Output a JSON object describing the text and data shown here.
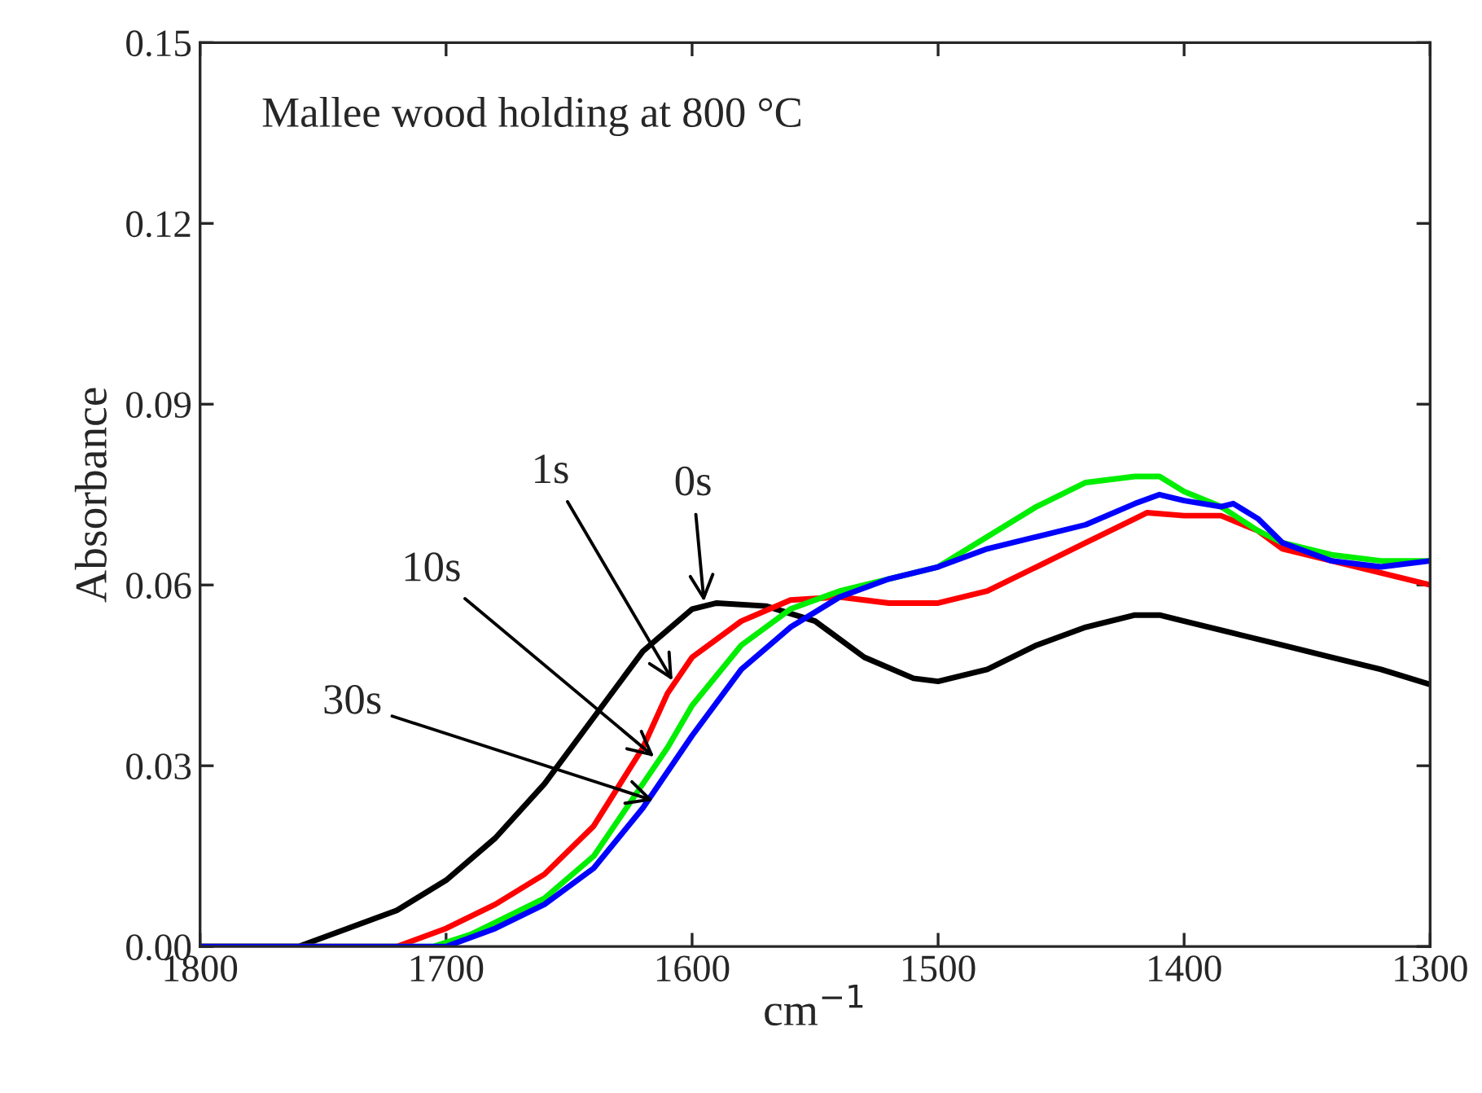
{
  "chart_data": {
    "type": "line",
    "title": "Mallee wood holding at 800 °C",
    "xlabel": "cm$^{−1}$",
    "ylabel": "Absorbance",
    "xlim": [
      1800,
      1300
    ],
    "ylim": [
      0,
      0.15
    ],
    "xticks": [
      1800,
      1700,
      1600,
      1500,
      1400,
      1300
    ],
    "yticks": [
      {
        "value": 0,
        "label": "0.00"
      },
      {
        "value": 0.03,
        "label": "0.03"
      },
      {
        "value": 0.06,
        "label": "0.06"
      },
      {
        "value": 0.09,
        "label": "0.09"
      },
      {
        "value": 0.12,
        "label": "0.12"
      },
      {
        "value": 0.15,
        "label": "0.15"
      }
    ],
    "grid": false,
    "legend": false,
    "line_style": "solid",
    "marker": "none",
    "series": [
      {
        "color": "#000000",
        "x": [
          1800,
          1760,
          1740,
          1720,
          1700,
          1680,
          1660,
          1640,
          1620,
          1600,
          1590,
          1570,
          1550,
          1530,
          1510,
          1500,
          1480,
          1460,
          1440,
          1420,
          1410,
          1400,
          1380,
          1360,
          1340,
          1320,
          1300
        ],
        "values": [
          0,
          0,
          0.003,
          0.006,
          0.011,
          0.018,
          0.027,
          0.038,
          0.049,
          0.056,
          0.057,
          0.0565,
          0.054,
          0.048,
          0.0445,
          0.044,
          0.046,
          0.05,
          0.053,
          0.055,
          0.055,
          0.054,
          0.052,
          0.05,
          0.048,
          0.046,
          0.0435
        ]
      },
      {
        "color": "#ff0000",
        "x": [
          1800,
          1720,
          1700,
          1680,
          1660,
          1640,
          1620,
          1610,
          1600,
          1580,
          1560,
          1540,
          1520,
          1500,
          1480,
          1460,
          1440,
          1420,
          1415,
          1400,
          1385,
          1370,
          1360,
          1340,
          1320,
          1300
        ],
        "values": [
          0,
          0,
          0.003,
          0.007,
          0.012,
          0.02,
          0.033,
          0.042,
          0.048,
          0.054,
          0.0575,
          0.058,
          0.057,
          0.057,
          0.059,
          0.063,
          0.067,
          0.071,
          0.072,
          0.0715,
          0.0715,
          0.069,
          0.066,
          0.064,
          0.062,
          0.06
        ]
      },
      {
        "color": "#00ee00",
        "x": [
          1800,
          1705,
          1690,
          1680,
          1660,
          1640,
          1620,
          1610,
          1600,
          1580,
          1560,
          1540,
          1520,
          1500,
          1480,
          1460,
          1440,
          1420,
          1410,
          1400,
          1385,
          1370,
          1360,
          1340,
          1320,
          1300
        ],
        "values": [
          0,
          0,
          0.002,
          0.004,
          0.008,
          0.015,
          0.027,
          0.033,
          0.04,
          0.05,
          0.056,
          0.059,
          0.061,
          0.063,
          0.068,
          0.073,
          0.077,
          0.078,
          0.078,
          0.0755,
          0.073,
          0.069,
          0.067,
          0.065,
          0.064,
          0.064
        ]
      },
      {
        "color": "#0000ff",
        "x": [
          1800,
          1700,
          1680,
          1660,
          1640,
          1620,
          1600,
          1580,
          1560,
          1540,
          1520,
          1500,
          1480,
          1460,
          1440,
          1420,
          1410,
          1400,
          1385,
          1380,
          1370,
          1360,
          1340,
          1320,
          1300
        ],
        "values": [
          0,
          0,
          0.003,
          0.007,
          0.013,
          0.023,
          0.035,
          0.046,
          0.053,
          0.058,
          0.061,
          0.063,
          0.066,
          0.068,
          0.07,
          0.0735,
          0.075,
          0.074,
          0.073,
          0.0735,
          0.071,
          0.067,
          0.064,
          0.063,
          0.064
        ]
      }
    ],
    "annotations": [
      {
        "text": "0s",
        "x": 1595,
        "y": 0.0565
      },
      {
        "text": "1s",
        "x": 1607,
        "y": 0.0435
      },
      {
        "text": "10s",
        "x": 1614,
        "y": 0.031
      },
      {
        "text": "30s",
        "x": 1614,
        "y": 0.024
      }
    ]
  }
}
